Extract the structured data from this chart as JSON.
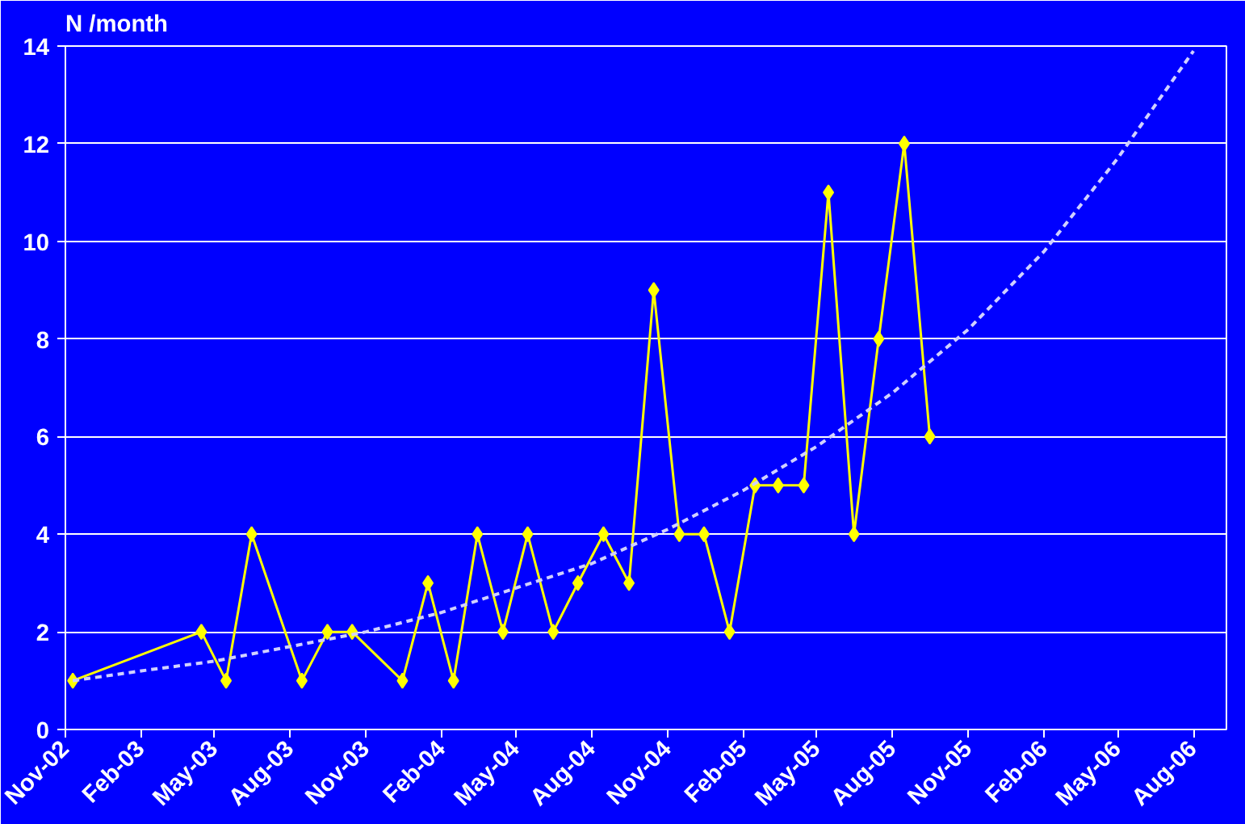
{
  "chart_data": {
    "type": "line",
    "ylabel": "N /month",
    "xlim": [
      "2002-11-01",
      "2006-09-10"
    ],
    "xticks": [
      {
        "value": "2002-11-01",
        "label": "Nov-02"
      },
      {
        "value": "2003-02-01",
        "label": "Feb-03"
      },
      {
        "value": "2003-05-01",
        "label": "May-03"
      },
      {
        "value": "2003-08-01",
        "label": "Aug-03"
      },
      {
        "value": "2003-11-01",
        "label": "Nov-03"
      },
      {
        "value": "2004-02-01",
        "label": "Feb-04"
      },
      {
        "value": "2004-05-01",
        "label": "May-04"
      },
      {
        "value": "2004-08-01",
        "label": "Aug-04"
      },
      {
        "value": "2004-11-01",
        "label": "Nov-04"
      },
      {
        "value": "2005-02-01",
        "label": "Feb-05"
      },
      {
        "value": "2005-05-01",
        "label": "May-05"
      },
      {
        "value": "2005-08-01",
        "label": "Aug-05"
      },
      {
        "value": "2005-11-01",
        "label": "Nov-05"
      },
      {
        "value": "2006-02-01",
        "label": "Feb-06"
      },
      {
        "value": "2006-05-01",
        "label": "May-06"
      },
      {
        "value": "2006-08-01",
        "label": "Aug-06"
      }
    ],
    "ylim": [
      0,
      14
    ],
    "yticks": [
      0,
      2,
      4,
      6,
      8,
      10,
      12,
      14
    ],
    "grid": "y",
    "series": [
      {
        "color": "#ffff00",
        "marker": "diamond",
        "line_style": "solid",
        "x": [
          "2002-11-10",
          "2003-04-15",
          "2003-05-15",
          "2003-06-15",
          "2003-08-15",
          "2003-09-15",
          "2003-10-15",
          "2003-12-15",
          "2004-01-15",
          "2004-02-15",
          "2004-03-15",
          "2004-04-15",
          "2004-05-15",
          "2004-06-15",
          "2004-07-15",
          "2004-08-15",
          "2004-09-15",
          "2004-10-15",
          "2004-11-15",
          "2004-12-15",
          "2005-01-15",
          "2005-02-15",
          "2005-03-15",
          "2005-04-15",
          "2005-05-15",
          "2005-06-15",
          "2005-07-15",
          "2005-08-15",
          "2005-09-15"
        ],
        "values": [
          1,
          2,
          1,
          4,
          1,
          2,
          2,
          1,
          3,
          1,
          4,
          2,
          4,
          2,
          3,
          4,
          3,
          9,
          4,
          4,
          2,
          5,
          5,
          5,
          11,
          4,
          8,
          12,
          6
        ]
      },
      {
        "color": "#d0d0ff",
        "marker": "none",
        "line_style": "dashed",
        "x": [
          "2002-11-10",
          "2003-02-01",
          "2003-05-01",
          "2003-08-01",
          "2003-11-01",
          "2004-02-01",
          "2004-05-01",
          "2004-08-01",
          "2004-11-01",
          "2005-02-01",
          "2005-05-01",
          "2005-08-01",
          "2005-11-01",
          "2006-02-01",
          "2006-05-01",
          "2006-08-01"
        ],
        "values": [
          1.0,
          1.2,
          1.4,
          1.7,
          2.0,
          2.4,
          2.9,
          3.4,
          4.1,
          4.9,
          5.8,
          6.9,
          8.2,
          9.8,
          11.7,
          13.9
        ]
      }
    ]
  }
}
